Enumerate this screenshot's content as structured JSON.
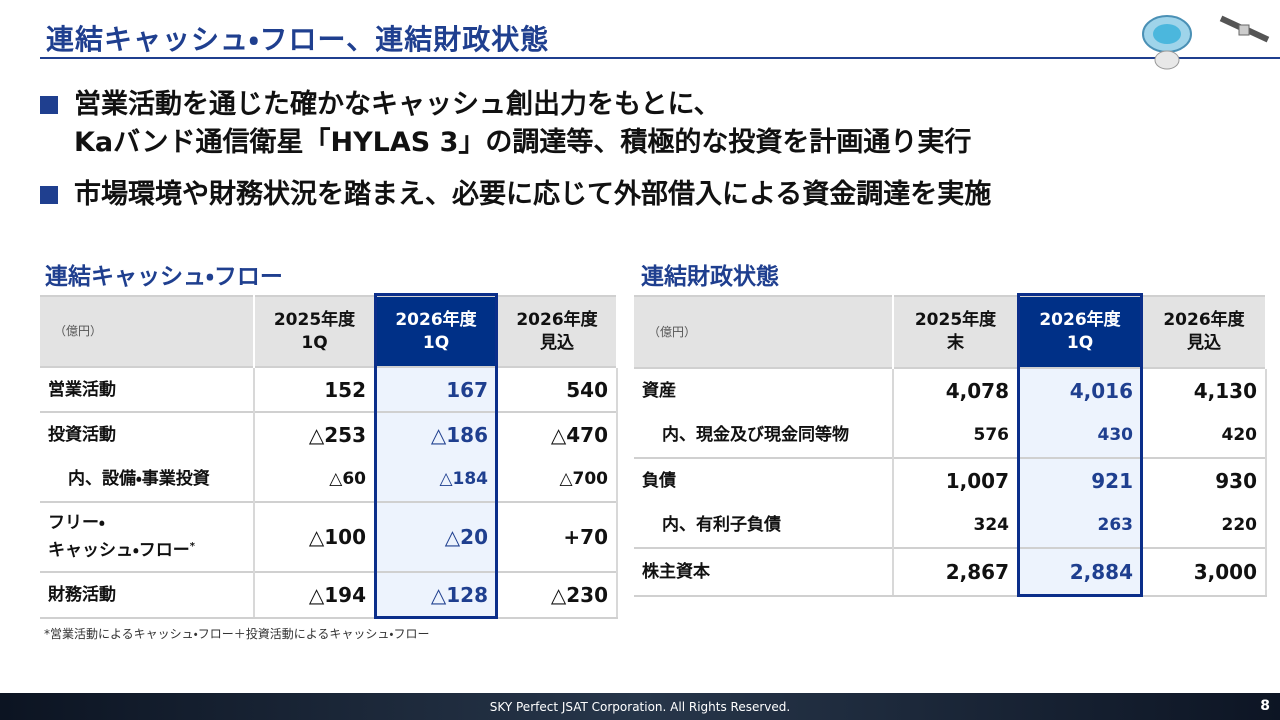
{
  "header": {
    "title": "連結キャッシュ・フロー、連結財政状態"
  },
  "bullets": [
    [
      "営業活動を通じた確かなキャッシュ創出力をもとに、",
      "Kaバンド通信衛星「HYLAS 3」の調達等、積極的な投資を計画通り実行"
    ],
    [
      "市場環境や財務状況を踏まえ、必要に応じて外部借入による資金調達を実施"
    ]
  ],
  "cash_flow": {
    "title": "連結キャッシュ・フロー",
    "unit": "（億円）",
    "columns": [
      [
        "2025年度",
        "1Q"
      ],
      [
        "2026年度",
        "1Q"
      ],
      [
        "2026年度",
        "見込"
      ]
    ],
    "groups": [
      [
        {
          "label": [
            "営業活動"
          ],
          "values": [
            "152",
            "167",
            "540"
          ]
        }
      ],
      [
        {
          "label": [
            "投資活動"
          ],
          "values": [
            "△253",
            "△186",
            "△470"
          ]
        },
        {
          "label": [
            "内、設備・事業投資"
          ],
          "values": [
            "△60",
            "△184",
            "△700"
          ]
        }
      ],
      [
        {
          "label": [
            "フリー・",
            "キャッシュ・フロー"
          ],
          "note_mark": "*",
          "values": [
            "△100",
            "△20",
            "+70"
          ]
        }
      ],
      [
        {
          "label": [
            "財務活動"
          ],
          "values": [
            "△194",
            "△128",
            "△230"
          ]
        }
      ]
    ],
    "note": "*営業活動によるキャッシュ・フロー＋投資活動によるキャッシュ・フロー"
  },
  "balance_sheet": {
    "title": "連結財政状態",
    "unit": "（億円）",
    "columns": [
      [
        "2025年度",
        "末"
      ],
      [
        "2026年度",
        "1Q"
      ],
      [
        "2026年度",
        "見込"
      ]
    ],
    "groups": [
      [
        {
          "label": [
            "資産"
          ],
          "values": [
            "4,078",
            "4,016",
            "4,130"
          ]
        },
        {
          "label": [
            "内、現金及び現金同等物"
          ],
          "values": [
            "576",
            "430",
            "420"
          ]
        }
      ],
      [
        {
          "label": [
            "負債"
          ],
          "values": [
            "1,007",
            "921",
            "930"
          ]
        },
        {
          "label": [
            "内、有利子負債"
          ],
          "values": [
            "324",
            "263",
            "220"
          ]
        }
      ],
      [
        {
          "label": [
            "株主資本"
          ],
          "values": [
            "2,867",
            "2,884",
            "3,000"
          ]
        }
      ]
    ]
  },
  "footer": {
    "copyright": "SKY Perfect JSAT Corporation. All Rights Reserved.",
    "page": "8"
  }
}
